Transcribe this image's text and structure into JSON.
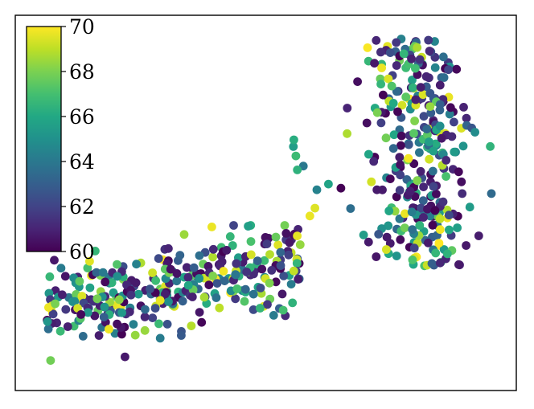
{
  "chart_data": {
    "type": "scatter",
    "title": "",
    "xlabel": "",
    "ylabel": "",
    "grid": false,
    "xlim": [
      0,
      100
    ],
    "ylim": [
      0,
      100
    ],
    "colorbar": {
      "label": "",
      "min": 60,
      "max": 70,
      "ticks": [
        60,
        62,
        64,
        66,
        68,
        70
      ],
      "tick_labels": [
        "60",
        "62",
        "64",
        "66",
        "68",
        "70"
      ],
      "colormap": "viridis",
      "placement": "upper-left-inset"
    },
    "clusters": [
      {
        "name": "",
        "x_range": [
          5,
          58
        ],
        "y_range": [
          7,
          44
        ],
        "count": 330
      },
      {
        "name": "",
        "x_range": [
          55,
          97
        ],
        "y_range": [
          30,
          95
        ],
        "count": 330
      }
    ]
  }
}
